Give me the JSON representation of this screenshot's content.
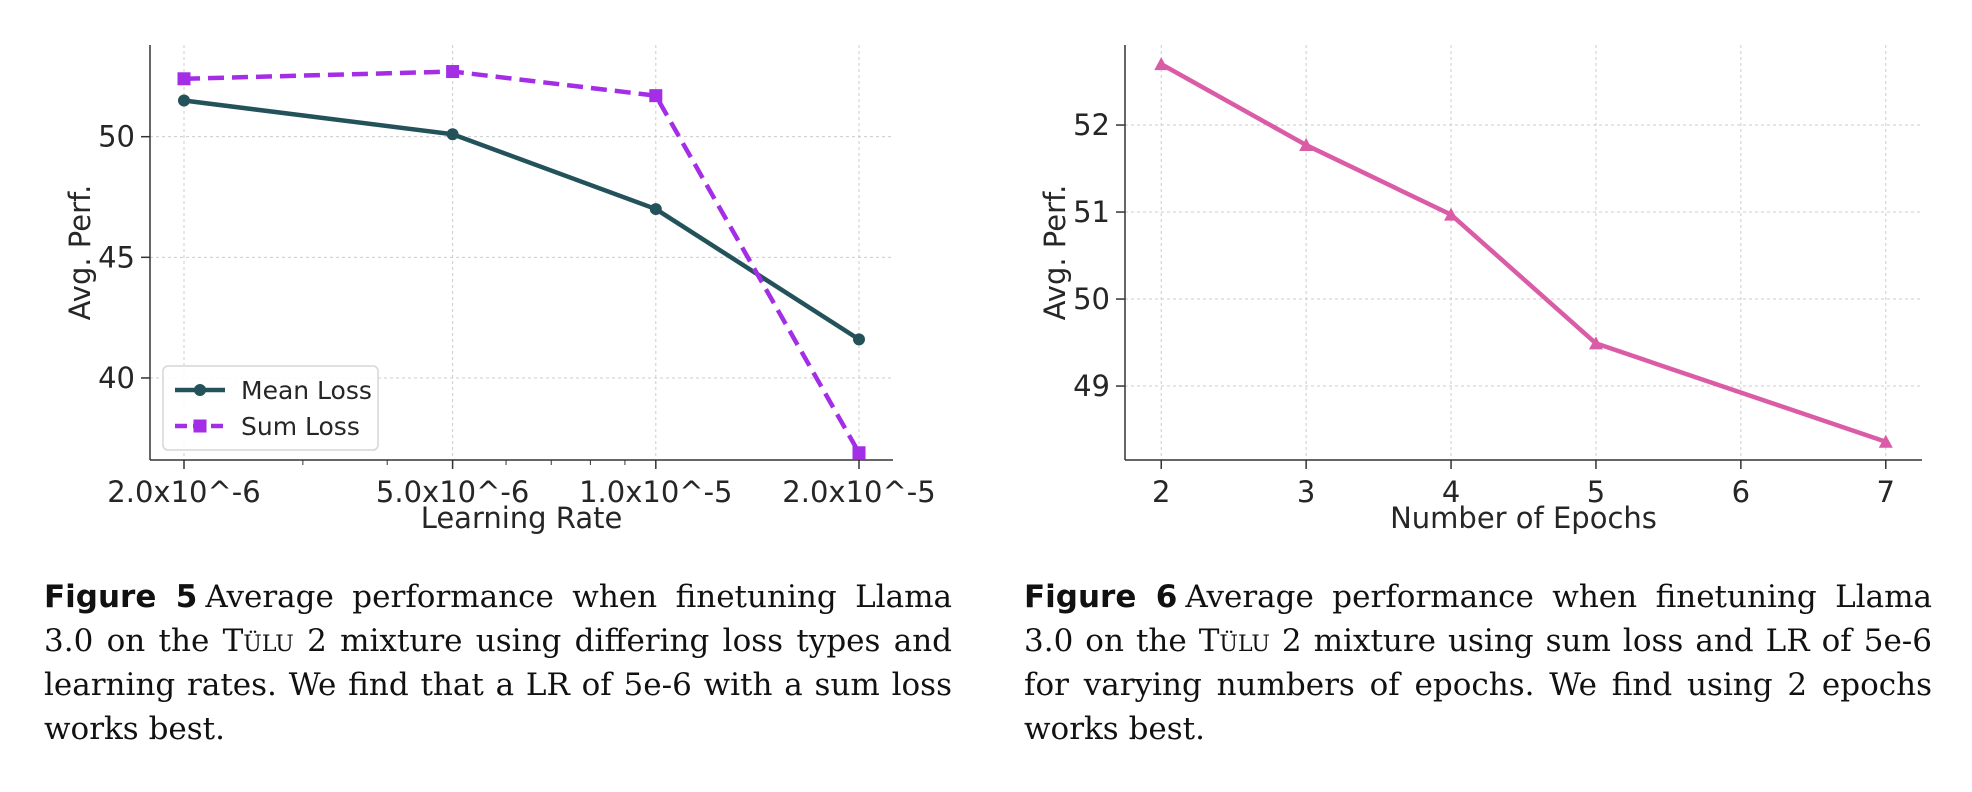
{
  "chart_data": [
    {
      "type": "line",
      "xlabel": "Learning Rate",
      "ylabel": "Avg. Perf.",
      "x_scale": "log",
      "categories": [
        "2.0x10^-6",
        "5.0x10^-6",
        "1.0x10^-5",
        "2.0x10^-5"
      ],
      "x": [
        2e-06,
        5e-06,
        1e-05,
        2e-05
      ],
      "yticks": [
        40,
        45,
        50
      ],
      "ylim": [
        36.6,
        53.8
      ],
      "grid": true,
      "legend_position": "lower-left",
      "series": [
        {
          "name": "Mean Loss",
          "values": [
            51.5,
            50.1,
            47.0,
            41.6
          ],
          "color": "#24525a",
          "marker": "circle",
          "dash": "solid"
        },
        {
          "name": "Sum Loss",
          "values": [
            52.4,
            52.7,
            51.7,
            36.9
          ],
          "color": "#a42ee6",
          "marker": "square",
          "dash": "dashed"
        }
      ]
    },
    {
      "type": "line",
      "xlabel": "Number of Epochs",
      "ylabel": "Avg. Perf.",
      "x": [
        2,
        3,
        4,
        5,
        7
      ],
      "xticks": [
        2,
        3,
        4,
        5,
        6,
        7
      ],
      "yticks": [
        49,
        50,
        51,
        52
      ],
      "xlim": [
        1.75,
        7.25
      ],
      "ylim": [
        48.15,
        52.92
      ],
      "grid": true,
      "series": [
        {
          "values": [
            52.7,
            51.77,
            50.97,
            49.49,
            48.36
          ],
          "color": "#db5ca6",
          "marker": "triangle",
          "dash": "solid"
        }
      ]
    }
  ],
  "captions": {
    "fig5": {
      "label": "Figure 5",
      "pre": "Average performance when finetuning Llama 3.0 on the ",
      "name": "Tülu",
      "post": " 2 mixture using differing loss types and learning rates. We find that a LR of 5e-6 with a sum loss works best."
    },
    "fig6": {
      "label": "Figure 6",
      "pre": "Average performance when finetuning Llama 3.0 on the ",
      "name": "Tülu",
      "post": " 2 mixture using sum loss and LR of 5e-6 for varying numbers of epochs. We find using 2 epochs works best."
    }
  }
}
